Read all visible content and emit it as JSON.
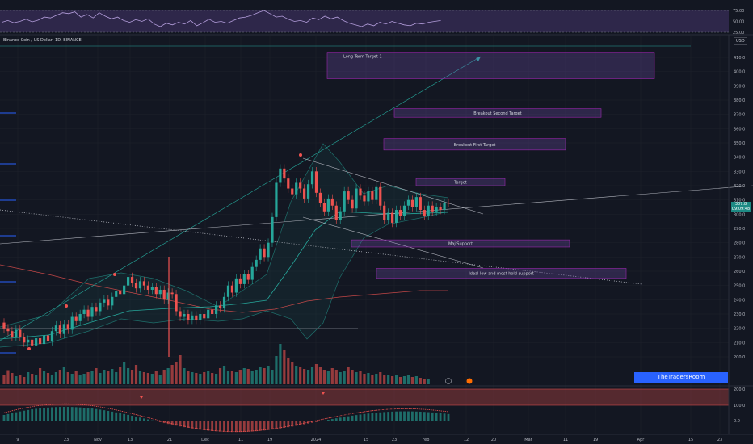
{
  "header": {
    "symbol_label": "Binance Coin / US Dollar, 1D, BINANCE",
    "currency": "USD"
  },
  "last_price": {
    "price": "307.8",
    "countdown": "09:09:48"
  },
  "watermark": "TheTradersRoom",
  "chart_data": [
    {
      "type": "candlestick",
      "title": "",
      "x_ticks": [
        "9",
        "23",
        "Nov",
        "13",
        "21",
        "Dec",
        "11",
        "19",
        "2024",
        "15",
        "23",
        "Feb",
        "12",
        "20",
        "Mar",
        "11",
        "19",
        "Apr",
        "15",
        "23"
      ],
      "price_ticks": [
        410,
        400,
        390,
        380,
        370,
        360,
        350,
        340,
        330,
        320,
        310,
        300,
        290,
        280,
        270,
        260,
        250,
        240,
        230,
        220,
        210,
        200
      ],
      "ylim": [
        200,
        420
      ],
      "candles": [
        [
          224,
          220
        ],
        [
          220,
          218
        ],
        [
          218,
          214
        ],
        [
          214,
          219
        ],
        [
          219,
          214
        ],
        [
          214,
          210
        ],
        [
          210,
          212
        ],
        [
          212,
          208
        ],
        [
          208,
          213
        ],
        [
          213,
          209
        ],
        [
          209,
          215
        ],
        [
          215,
          211
        ],
        [
          211,
          218
        ],
        [
          218,
          222
        ],
        [
          222,
          216
        ],
        [
          216,
          223
        ],
        [
          223,
          219
        ],
        [
          219,
          228
        ],
        [
          228,
          225
        ],
        [
          225,
          230
        ],
        [
          230,
          233
        ],
        [
          233,
          228
        ],
        [
          228,
          235
        ],
        [
          235,
          232
        ],
        [
          232,
          238
        ],
        [
          238,
          240
        ],
        [
          240,
          236
        ],
        [
          236,
          242
        ],
        [
          242,
          246
        ],
        [
          246,
          244
        ],
        [
          244,
          250
        ],
        [
          250,
          256
        ],
        [
          256,
          252
        ],
        [
          252,
          248
        ],
        [
          248,
          253
        ],
        [
          253,
          250
        ],
        [
          250,
          247
        ],
        [
          247,
          249
        ],
        [
          249,
          244
        ],
        [
          244,
          247
        ],
        [
          247,
          240
        ],
        [
          240,
          245
        ],
        [
          245,
          244
        ],
        [
          244,
          232
        ],
        [
          232,
          228
        ],
        [
          228,
          230
        ],
        [
          230,
          226
        ],
        [
          226,
          229
        ],
        [
          229,
          226
        ],
        [
          226,
          230
        ],
        [
          230,
          227
        ],
        [
          227,
          233
        ],
        [
          233,
          230
        ],
        [
          230,
          236
        ],
        [
          236,
          234
        ],
        [
          234,
          242
        ],
        [
          242,
          250
        ],
        [
          250,
          245
        ],
        [
          245,
          255
        ],
        [
          255,
          251
        ],
        [
          251,
          258
        ],
        [
          258,
          254
        ],
        [
          254,
          263
        ],
        [
          263,
          268
        ],
        [
          268,
          276
        ],
        [
          276,
          270
        ],
        [
          270,
          280
        ],
        [
          280,
          298
        ],
        [
          298,
          322
        ],
        [
          322,
          332
        ],
        [
          332,
          325
        ],
        [
          325,
          318
        ],
        [
          318,
          314
        ],
        [
          314,
          322
        ],
        [
          322,
          318
        ],
        [
          318,
          311
        ],
        [
          311,
          321
        ],
        [
          321,
          330
        ],
        [
          330,
          315
        ],
        [
          315,
          308
        ],
        [
          308,
          302
        ],
        [
          302,
          311
        ],
        [
          311,
          306
        ],
        [
          306,
          296
        ],
        [
          296,
          302
        ],
        [
          302,
          316
        ],
        [
          316,
          310
        ],
        [
          310,
          304
        ],
        [
          304,
          318
        ],
        [
          318,
          313
        ],
        [
          313,
          309
        ],
        [
          309,
          316
        ],
        [
          316,
          310
        ],
        [
          310,
          319
        ],
        [
          319,
          306
        ],
        [
          306,
          296
        ],
        [
          296,
          301
        ],
        [
          301,
          294
        ],
        [
          294,
          303
        ],
        [
          303,
          299
        ],
        [
          299,
          306
        ],
        [
          306,
          310
        ],
        [
          310,
          305
        ],
        [
          305,
          312
        ],
        [
          312,
          303
        ],
        [
          303,
          299
        ],
        [
          299,
          306
        ],
        [
          306,
          302
        ],
        [
          302,
          305
        ],
        [
          305,
          303
        ],
        [
          303,
          308
        ],
        [
          308,
          307.8
        ]
      ],
      "volume": [
        22,
        35,
        28,
        20,
        24,
        18,
        30,
        26,
        22,
        40,
        32,
        28,
        24,
        30,
        36,
        44,
        30,
        26,
        32,
        22,
        26,
        30,
        34,
        40,
        28,
        36,
        32,
        38,
        30,
        42,
        55,
        40,
        36,
        48,
        34,
        30,
        28,
        26,
        32,
        24,
        36,
        40,
        48,
        56,
        72,
        40,
        34,
        30,
        28,
        26,
        30,
        32,
        28,
        26,
        40,
        46,
        32,
        34,
        30,
        36,
        40,
        38,
        34,
        36,
        42,
        40,
        46,
        36,
        70,
        100,
        84,
        64,
        56,
        46,
        42,
        38,
        36,
        44,
        50,
        42,
        36,
        32,
        40,
        36,
        30,
        34,
        44,
        36,
        30,
        32,
        26,
        28,
        24,
        26,
        30,
        24,
        22,
        20,
        24,
        18,
        20,
        22,
        18,
        20,
        16,
        14,
        12
      ],
      "rsi": {
        "ticks": [
          75,
          50,
          25
        ],
        "values": [
          48,
          52,
          47,
          50,
          55,
          49,
          53,
          60,
          58,
          64,
          70,
          68,
          72,
          60,
          66,
          58,
          70,
          62,
          56,
          60,
          52,
          48,
          54,
          50,
          56,
          44,
          38,
          46,
          42,
          48,
          44,
          52,
          40,
          47,
          55,
          48,
          50,
          46,
          52,
          58,
          60,
          64,
          70,
          75,
          68,
          60,
          62,
          55,
          50,
          52,
          48,
          58,
          54,
          62,
          56,
          60,
          52,
          46,
          42,
          38,
          44,
          40,
          48,
          44,
          50,
          46,
          42,
          40,
          46,
          44,
          48,
          50,
          52
        ]
      },
      "macd": {
        "ticks": [
          200,
          100,
          0
        ]
      },
      "annotations": [
        {
          "label": "Long Term Target 1",
          "price_top": 413,
          "price_bottom": 395
        },
        {
          "label": "Breakout Second Target",
          "price_top": 374,
          "price_bottom": 368
        },
        {
          "label": "Breakout First Target",
          "price_top": 353,
          "price_bottom": 345
        },
        {
          "label": "Target",
          "price_top": 325,
          "price_bottom": 320
        },
        {
          "label": "Maj Support",
          "price_top": 282,
          "price_bottom": 277
        },
        {
          "label": "Ideal low and most hold support",
          "price_top": 262,
          "price_bottom": 255
        }
      ]
    }
  ]
}
